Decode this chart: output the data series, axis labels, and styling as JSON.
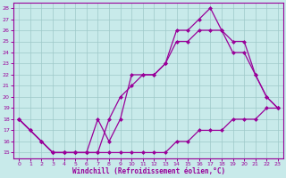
{
  "xlabel": "Windchill (Refroidissement éolien,°C)",
  "background_color": "#c8eaea",
  "grid_color": "#9ec8c8",
  "line_color": "#990099",
  "xlim": [
    -0.5,
    23.5
  ],
  "ylim": [
    14.5,
    28.5
  ],
  "yticks": [
    15,
    16,
    17,
    18,
    19,
    20,
    21,
    22,
    23,
    24,
    25,
    26,
    27,
    28
  ],
  "xticks": [
    0,
    1,
    2,
    3,
    4,
    5,
    6,
    7,
    8,
    9,
    10,
    11,
    12,
    13,
    14,
    15,
    16,
    17,
    18,
    19,
    20,
    21,
    22,
    23
  ],
  "line1_x": [
    0,
    1,
    2,
    3,
    4,
    5,
    6,
    7,
    8,
    9,
    10,
    11,
    12,
    13,
    14,
    15,
    16,
    17,
    18,
    19,
    20,
    21,
    22,
    23
  ],
  "line1_y": [
    18,
    17,
    16,
    15,
    15,
    15,
    15,
    15,
    15,
    15,
    15,
    15,
    15,
    15,
    16,
    16,
    17,
    17,
    17,
    18,
    18,
    18,
    19,
    19
  ],
  "line2_x": [
    0,
    1,
    2,
    3,
    4,
    5,
    6,
    7,
    8,
    9,
    10,
    11,
    12,
    13,
    14,
    15,
    16,
    17,
    18,
    19,
    20,
    21,
    22,
    23
  ],
  "line2_y": [
    18,
    17,
    16,
    15,
    15,
    15,
    15,
    18,
    16,
    18,
    22,
    22,
    22,
    23,
    26,
    26,
    27,
    28,
    26,
    25,
    25,
    22,
    20,
    19
  ],
  "line3_x": [
    0,
    2,
    3,
    4,
    5,
    6,
    7,
    8,
    9,
    10,
    11,
    12,
    13,
    14,
    15,
    16,
    17,
    18,
    19,
    20,
    21,
    22,
    23
  ],
  "line3_y": [
    18,
    16,
    15,
    15,
    15,
    15,
    15,
    18,
    20,
    21,
    22,
    22,
    23,
    25,
    25,
    26,
    26,
    26,
    24,
    24,
    22,
    20,
    19
  ]
}
